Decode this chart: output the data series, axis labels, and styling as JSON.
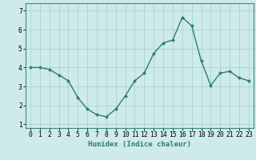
{
  "x": [
    0,
    1,
    2,
    3,
    4,
    5,
    6,
    7,
    8,
    9,
    10,
    11,
    12,
    13,
    14,
    15,
    16,
    17,
    18,
    19,
    20,
    21,
    22,
    23
  ],
  "y": [
    4.0,
    4.0,
    3.9,
    3.6,
    3.3,
    2.4,
    1.8,
    1.5,
    1.4,
    1.8,
    2.5,
    3.3,
    3.7,
    4.75,
    5.3,
    5.45,
    6.65,
    6.2,
    4.35,
    3.05,
    3.7,
    3.8,
    3.45,
    3.3
  ],
  "line_color": "#2e7d6e",
  "marker": "D",
  "marker_size": 2.0,
  "bg_color": "#ceeaea",
  "grid_color": "#a8d4d4",
  "xlabel": "Humidex (Indice chaleur)",
  "ylabel": "",
  "xlim": [
    -0.5,
    23.5
  ],
  "ylim": [
    0.8,
    7.4
  ],
  "yticks": [
    1,
    2,
    3,
    4,
    5,
    6,
    7
  ],
  "xticks": [
    0,
    1,
    2,
    3,
    4,
    5,
    6,
    7,
    8,
    9,
    10,
    11,
    12,
    13,
    14,
    15,
    16,
    17,
    18,
    19,
    20,
    21,
    22,
    23
  ],
  "xlabel_fontsize": 6.5,
  "tick_fontsize": 5.8,
  "line_width": 1.0
}
